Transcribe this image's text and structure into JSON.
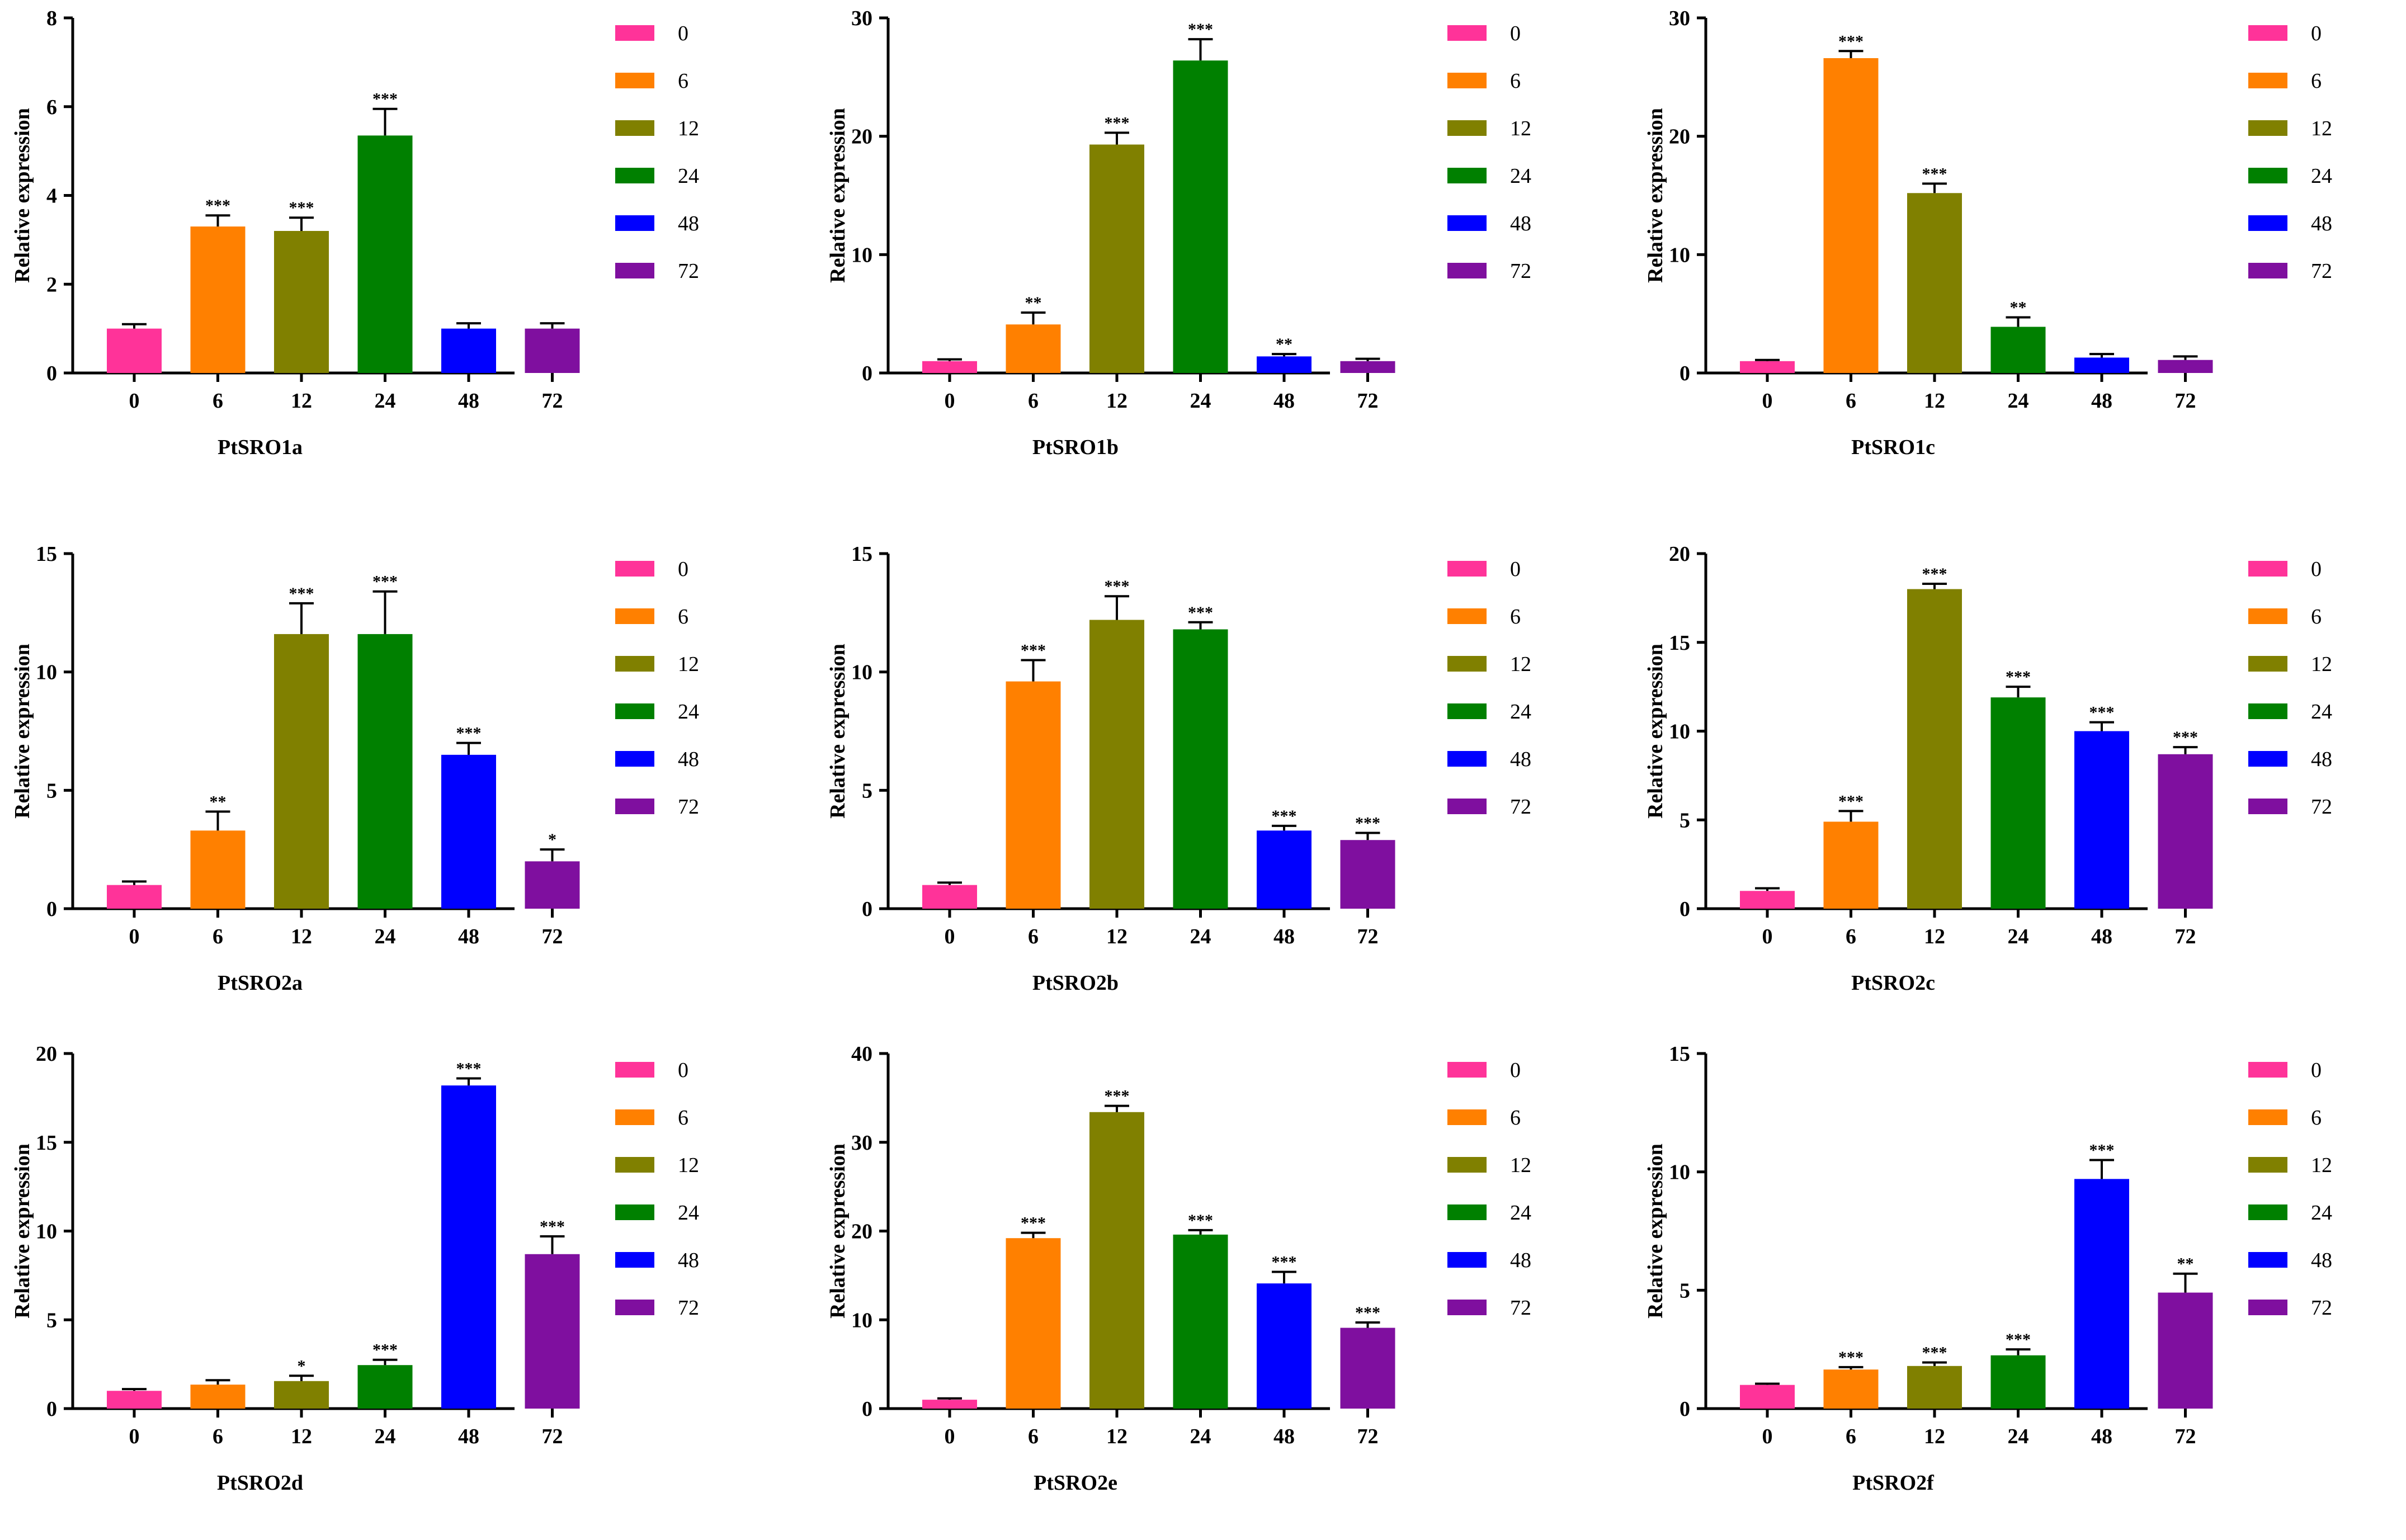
{
  "figure": {
    "categories": [
      "0",
      "6",
      "12",
      "24",
      "48",
      "72"
    ],
    "colors": [
      "#ff3399",
      "#ff8000",
      "#808000",
      "#008000",
      "#0000ff",
      "#7f0f9f"
    ],
    "ylabel": "Relative expression"
  },
  "chart_data": [
    {
      "type": "bar",
      "title": "PtSRO1a",
      "xlabel": "PtSRO1a",
      "ylabel": "Relative expression",
      "categories": [
        "0",
        "6",
        "12",
        "24",
        "48",
        "72"
      ],
      "values": [
        1.0,
        3.3,
        3.2,
        5.35,
        1.0,
        1.0
      ],
      "errors": [
        0.1,
        0.25,
        0.3,
        0.6,
        0.12,
        0.12
      ],
      "significance": [
        "",
        "***",
        "***",
        "***",
        "",
        ""
      ],
      "ylim": [
        0,
        8
      ],
      "yticks": [
        0,
        2,
        4,
        6,
        8
      ],
      "legend": [
        "0",
        "6",
        "12",
        "24",
        "48",
        "72"
      ]
    },
    {
      "type": "bar",
      "title": "PtSRO1b",
      "xlabel": "PtSRO1b",
      "ylabel": "Relative expression",
      "categories": [
        "0",
        "6",
        "12",
        "24",
        "48",
        "72"
      ],
      "values": [
        1.0,
        4.1,
        19.3,
        26.4,
        1.4,
        1.0
      ],
      "errors": [
        0.15,
        1.0,
        1.0,
        1.8,
        0.2,
        0.2
      ],
      "significance": [
        "",
        "**",
        "***",
        "***",
        "**",
        ""
      ],
      "ylim": [
        0,
        30
      ],
      "yticks": [
        0,
        10,
        20,
        30
      ],
      "legend": [
        "0",
        "6",
        "12",
        "24",
        "48",
        "72"
      ]
    },
    {
      "type": "bar",
      "title": "PtSRO1c",
      "xlabel": "PtSRO1c",
      "ylabel": "Relative expression",
      "categories": [
        "0",
        "6",
        "12",
        "24",
        "48",
        "72"
      ],
      "values": [
        1.0,
        26.6,
        15.2,
        3.9,
        1.3,
        1.1
      ],
      "errors": [
        0.1,
        0.6,
        0.8,
        0.8,
        0.3,
        0.3
      ],
      "significance": [
        "",
        "***",
        "***",
        "**",
        "",
        ""
      ],
      "ylim": [
        0,
        30
      ],
      "yticks": [
        0,
        10,
        20,
        30
      ],
      "legend": [
        "0",
        "6",
        "12",
        "24",
        "48",
        "72"
      ]
    },
    {
      "type": "bar",
      "title": "PtSRO2a",
      "xlabel": "PtSRO2a",
      "ylabel": "Relative expression",
      "categories": [
        "0",
        "6",
        "12",
        "24",
        "48",
        "72"
      ],
      "values": [
        1.0,
        3.3,
        11.6,
        11.6,
        6.5,
        2.0
      ],
      "errors": [
        0.15,
        0.8,
        1.3,
        1.8,
        0.5,
        0.5
      ],
      "significance": [
        "",
        "**",
        "***",
        "***",
        "***",
        "*"
      ],
      "ylim": [
        0,
        15
      ],
      "yticks": [
        0,
        5,
        10,
        15
      ],
      "legend": [
        "0",
        "6",
        "12",
        "24",
        "48",
        "72"
      ]
    },
    {
      "type": "bar",
      "title": "PtSRO2b",
      "xlabel": "PtSRO2b",
      "ylabel": "Relative expression",
      "categories": [
        "0",
        "6",
        "12",
        "24",
        "48",
        "72"
      ],
      "values": [
        1.0,
        9.6,
        12.2,
        11.8,
        3.3,
        2.9
      ],
      "errors": [
        0.1,
        0.9,
        1.0,
        0.3,
        0.2,
        0.3
      ],
      "significance": [
        "",
        "***",
        "***",
        "***",
        "***",
        "***"
      ],
      "ylim": [
        0,
        15
      ],
      "yticks": [
        0,
        5,
        10,
        15
      ],
      "legend": [
        "0",
        "6",
        "12",
        "24",
        "48",
        "72"
      ]
    },
    {
      "type": "bar",
      "title": "PtSRO2c",
      "xlabel": "PtSRO2c",
      "ylabel": "Relative expression",
      "categories": [
        "0",
        "6",
        "12",
        "24",
        "48",
        "72"
      ],
      "values": [
        1.0,
        4.9,
        18.0,
        11.9,
        10.0,
        8.7
      ],
      "errors": [
        0.15,
        0.6,
        0.3,
        0.6,
        0.5,
        0.4
      ],
      "significance": [
        "",
        "***",
        "***",
        "***",
        "***",
        "***"
      ],
      "ylim": [
        0,
        20
      ],
      "yticks": [
        0,
        5,
        10,
        15,
        20
      ],
      "legend": [
        "0",
        "6",
        "12",
        "24",
        "48",
        "72"
      ]
    },
    {
      "type": "bar",
      "title": "PtSRO2d",
      "xlabel": "PtSRO2d",
      "ylabel": "Relative expression",
      "categories": [
        "0",
        "6",
        "12",
        "24",
        "48",
        "72"
      ],
      "values": [
        1.0,
        1.35,
        1.55,
        2.45,
        18.2,
        8.7
      ],
      "errors": [
        0.1,
        0.25,
        0.3,
        0.3,
        0.4,
        1.0
      ],
      "significance": [
        "",
        "",
        "*",
        "***",
        "***",
        "***"
      ],
      "ylim": [
        0,
        20
      ],
      "yticks": [
        0,
        5,
        10,
        15,
        20
      ],
      "legend": [
        "0",
        "6",
        "12",
        "24",
        "48",
        "72"
      ]
    },
    {
      "type": "bar",
      "title": "PtSRO2e",
      "xlabel": "PtSRO2e",
      "ylabel": "Relative expression",
      "categories": [
        "0",
        "6",
        "12",
        "24",
        "48",
        "72"
      ],
      "values": [
        1.0,
        19.2,
        33.4,
        19.6,
        14.1,
        9.1
      ],
      "errors": [
        0.15,
        0.6,
        0.7,
        0.5,
        1.3,
        0.6
      ],
      "significance": [
        "",
        "***",
        "***",
        "***",
        "***",
        "***"
      ],
      "ylim": [
        0,
        40
      ],
      "yticks": [
        0,
        10,
        20,
        30,
        40
      ],
      "legend": [
        "0",
        "6",
        "12",
        "24",
        "48",
        "72"
      ]
    },
    {
      "type": "bar",
      "title": "PtSRO2f",
      "xlabel": "PtSRO2f",
      "ylabel": "Relative expression",
      "categories": [
        "0",
        "6",
        "12",
        "24",
        "48",
        "72"
      ],
      "values": [
        1.0,
        1.65,
        1.8,
        2.25,
        9.7,
        4.9
      ],
      "errors": [
        0.05,
        0.1,
        0.15,
        0.25,
        0.8,
        0.8
      ],
      "significance": [
        "",
        "***",
        "***",
        "***",
        "***",
        "**"
      ],
      "ylim": [
        0,
        15
      ],
      "yticks": [
        0,
        5,
        10,
        15
      ],
      "legend": [
        "0",
        "6",
        "12",
        "24",
        "48",
        "72"
      ]
    }
  ]
}
